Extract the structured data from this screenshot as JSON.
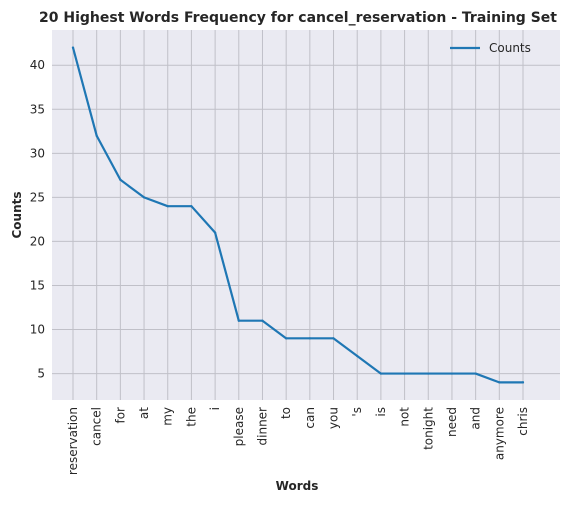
{
  "chart_data": {
    "type": "line",
    "title": "20 Highest Words Frequency for cancel_reservation - Training Set",
    "xlabel": "Words",
    "ylabel": "Counts",
    "categories": [
      "reservation",
      "cancel",
      "for",
      "at",
      "my",
      "the",
      "i",
      "please",
      "dinner",
      "to",
      "can",
      "you",
      "'s",
      "is",
      "not",
      "tonight",
      "need",
      "and",
      "anymore",
      "chris"
    ],
    "series": [
      {
        "name": "Counts",
        "values": [
          42,
          32,
          27,
          25,
          24,
          24,
          21,
          11,
          11,
          9,
          9,
          9,
          7,
          5,
          5,
          5,
          5,
          5,
          4,
          4
        ]
      }
    ],
    "yticks": [
      5,
      10,
      15,
      20,
      25,
      30,
      35,
      40
    ],
    "ylim": [
      2,
      44
    ],
    "grid": true,
    "legend": "top-right",
    "colors": {
      "line": "#1f77b4",
      "background": "#eaeaf2",
      "grid": "#c0c0c8"
    }
  }
}
